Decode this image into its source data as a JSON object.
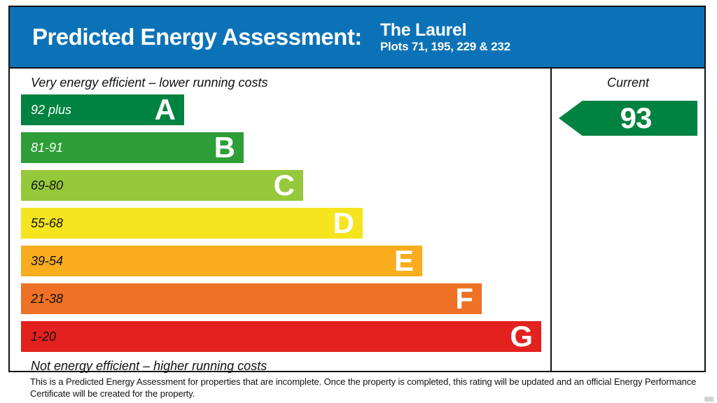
{
  "header": {
    "title": "Predicted Energy Assessment:",
    "property_name": "The Laurel",
    "plots": "Plots 71, 195, 229 & 232",
    "background": "#0C72B8"
  },
  "chart_data": {
    "type": "bar",
    "title": "Predicted Energy Assessment",
    "top_label": "Very energy efficient – lower running costs",
    "bottom_label": "Not energy efficient – higher running costs",
    "column_header": "Current",
    "current_rating": 93,
    "current_band": "A",
    "current_color": "#008240",
    "bands": [
      {
        "letter": "A",
        "range": "92 plus",
        "min": 92,
        "max": 100,
        "color": "#008240",
        "text_color": "#ffffff"
      },
      {
        "letter": "B",
        "range": "81-91",
        "min": 81,
        "max": 91,
        "color": "#2E9E38",
        "text_color": "#ffffff"
      },
      {
        "letter": "C",
        "range": "69-80",
        "min": 69,
        "max": 80,
        "color": "#96C83C",
        "text_color": "#111111"
      },
      {
        "letter": "D",
        "range": "55-68",
        "min": 55,
        "max": 68,
        "color": "#F6E41F",
        "text_color": "#111111"
      },
      {
        "letter": "E",
        "range": "39-54",
        "min": 39,
        "max": 54,
        "color": "#F9AD1E",
        "text_color": "#111111"
      },
      {
        "letter": "F",
        "range": "21-38",
        "min": 21,
        "max": 38,
        "color": "#EE7125",
        "text_color": "#111111"
      },
      {
        "letter": "G",
        "range": "1-20",
        "min": 1,
        "max": 20,
        "color": "#E3211F",
        "text_color": "#111111"
      }
    ]
  },
  "footer": {
    "line1": "This is a Predicted Energy Assessment for properties that are incomplete. Once the property is completed, this rating will be updated and an official Energy Performance",
    "line2": "Certificate will be created for the property."
  }
}
